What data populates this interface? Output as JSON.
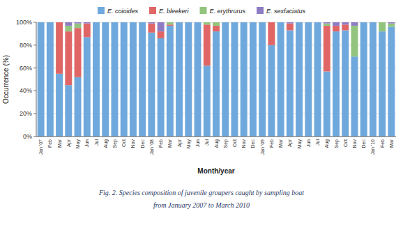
{
  "chart_data": {
    "type": "bar",
    "stacked": true,
    "categories": [
      "Jan '07",
      "Feb",
      "Mar",
      "Apr",
      "May",
      "Jun",
      "Jul",
      "Aug",
      "Sep",
      "Oct",
      "Nov",
      "Dec",
      "Jan '08",
      "Feb",
      "Mar",
      "Apr",
      "May",
      "Jun",
      "Jul",
      "Aug",
      "Sep",
      "Oct",
      "Nov",
      "Dec",
      "Jan '09",
      "Feb",
      "Mar",
      "Apr",
      "May",
      "Jun",
      "Jul",
      "Aug",
      "Sep",
      "Oct",
      "Nov",
      "Dec",
      "Jan '10",
      "Feb",
      "Mar"
    ],
    "series": [
      {
        "name": "E. coioides",
        "color": "#6fa8dc",
        "values": [
          100,
          100,
          55,
          45,
          52,
          87,
          100,
          100,
          100,
          100,
          100,
          100,
          91,
          86,
          97,
          100,
          100,
          100,
          62,
          92,
          100,
          100,
          100,
          100,
          100,
          80,
          100,
          93,
          100,
          100,
          100,
          57,
          92,
          93,
          70,
          100,
          100,
          92,
          96
        ]
      },
      {
        "name": "E. bleekeri",
        "color": "#e06666",
        "values": [
          0,
          0,
          45,
          47,
          43,
          12,
          0,
          0,
          0,
          0,
          0,
          0,
          8,
          6,
          1,
          0,
          0,
          0,
          36,
          5,
          0,
          0,
          0,
          0,
          0,
          20,
          0,
          6,
          0,
          0,
          0,
          40,
          5,
          5,
          0,
          0,
          0,
          0,
          0
        ]
      },
      {
        "name": "E. erythrurus",
        "color": "#93c47d",
        "values": [
          0,
          0,
          0,
          5,
          4,
          0,
          0,
          0,
          0,
          0,
          0,
          0,
          0,
          0,
          2,
          0,
          0,
          0,
          2,
          3,
          0,
          0,
          0,
          0,
          0,
          0,
          0,
          0,
          0,
          0,
          0,
          2,
          0,
          0,
          27,
          0,
          0,
          8,
          3
        ]
      },
      {
        "name": "E. sexfaciatus",
        "color": "#8e7cc3",
        "values": [
          0,
          0,
          0,
          3,
          1,
          1,
          0,
          0,
          0,
          0,
          0,
          0,
          1,
          8,
          0,
          0,
          0,
          0,
          0,
          0,
          0,
          0,
          0,
          0,
          0,
          0,
          0,
          1,
          0,
          0,
          0,
          1,
          3,
          2,
          3,
          0,
          0,
          0,
          1
        ]
      }
    ],
    "ylabel": "Occurrence (%)",
    "xlabel": "Month/year",
    "ylim": [
      0,
      100
    ],
    "yticks": [
      {
        "value": 0,
        "label": "0%"
      },
      {
        "value": 20,
        "label": "20%"
      },
      {
        "value": 40,
        "label": "40%"
      },
      {
        "value": 60,
        "label": "60%"
      },
      {
        "value": 80,
        "label": "80%"
      },
      {
        "value": 100,
        "label": "100%"
      }
    ],
    "grid": true,
    "legend": "top",
    "annotations": [
      "Fig. 2. Species composition of juvenile groupers caught by sampling boat",
      "from January 2007 to March 2010"
    ]
  }
}
